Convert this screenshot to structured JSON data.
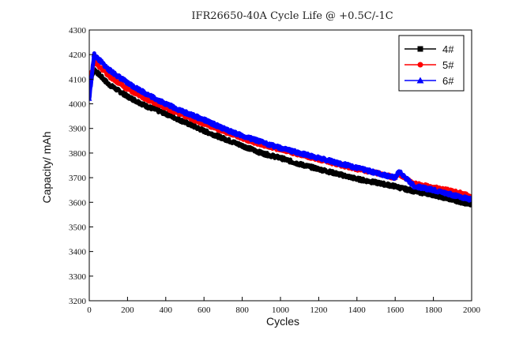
{
  "chart_data": {
    "type": "line",
    "title": "IFR26650-40A Cycle Life @ +0.5C/-1C",
    "xlabel": "Cycles",
    "ylabel": "Capacity/ mAh",
    "xlim": [
      0,
      2000
    ],
    "ylim": [
      3200,
      4300
    ],
    "xticks": [
      0,
      200,
      400,
      600,
      800,
      1000,
      1200,
      1400,
      1600,
      1800,
      2000
    ],
    "yticks": [
      3200,
      3300,
      3400,
      3500,
      3600,
      3700,
      3800,
      3900,
      4000,
      4100,
      4200,
      4300
    ],
    "grid": false,
    "legend_position": "top-right",
    "series": [
      {
        "name": "4#",
        "color": "#000000",
        "marker": "square",
        "x": [
          0,
          25,
          100,
          200,
          300,
          400,
          500,
          600,
          700,
          800,
          900,
          1000,
          1100,
          1200,
          1300,
          1400,
          1500,
          1600,
          1620,
          1700,
          1800,
          1900,
          2000
        ],
        "y": [
          4070,
          4140,
          4080,
          4030,
          3990,
          3960,
          3925,
          3890,
          3860,
          3830,
          3800,
          3780,
          3755,
          3735,
          3715,
          3695,
          3680,
          3665,
          3660,
          3645,
          3630,
          3610,
          3590
        ]
      },
      {
        "name": "5#",
        "color": "#ff0000",
        "marker": "circle",
        "x": [
          0,
          25,
          100,
          200,
          300,
          400,
          500,
          600,
          700,
          800,
          900,
          1000,
          1100,
          1200,
          1300,
          1400,
          1500,
          1600,
          1620,
          1700,
          1800,
          1900,
          2000
        ],
        "y": [
          4080,
          4175,
          4115,
          4060,
          4020,
          3985,
          3950,
          3920,
          3890,
          3860,
          3835,
          3815,
          3795,
          3775,
          3755,
          3735,
          3720,
          3700,
          3715,
          3675,
          3660,
          3645,
          3625
        ]
      },
      {
        "name": "6#",
        "color": "#0000ff",
        "marker": "triangle",
        "x": [
          0,
          25,
          100,
          200,
          300,
          400,
          500,
          600,
          700,
          800,
          900,
          1000,
          1100,
          1200,
          1300,
          1400,
          1500,
          1600,
          1620,
          1700,
          1800,
          1900,
          2000
        ],
        "y": [
          4020,
          4200,
          4140,
          4085,
          4040,
          4000,
          3965,
          3935,
          3900,
          3870,
          3845,
          3820,
          3800,
          3780,
          3760,
          3740,
          3720,
          3700,
          3725,
          3665,
          3650,
          3630,
          3610
        ]
      }
    ]
  }
}
